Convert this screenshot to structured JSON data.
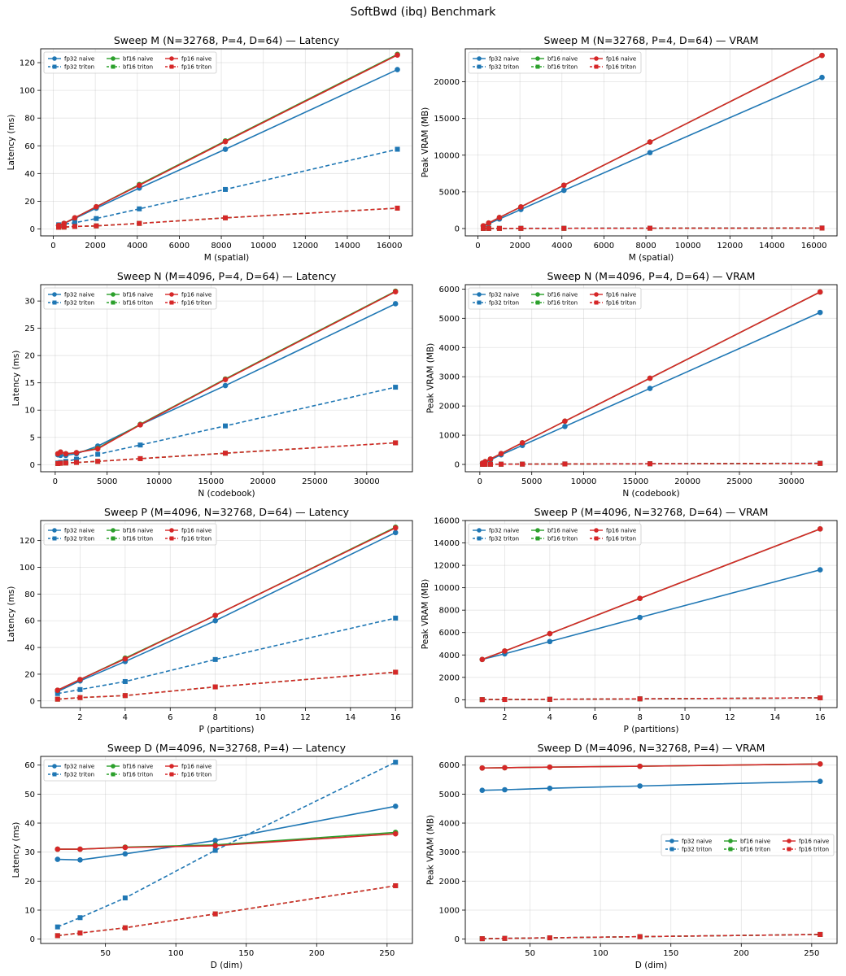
{
  "title": "SoftBwd (ibq) Benchmark",
  "colors": {
    "fp32": "#1f77b4",
    "bf16": "#2ca02c",
    "fp16": "#d62728"
  },
  "chart_data": [
    {
      "type": "line",
      "title": "Sweep M  (N=32768, P=4, D=64) — Latency",
      "xlabel": "M (spatial)",
      "ylabel": "Latency (ms)",
      "x": [
        256,
        512,
        1024,
        2048,
        4096,
        8192,
        16384
      ],
      "xlim": [
        -600,
        17100
      ],
      "ylim": [
        -5,
        130
      ],
      "xticks": [
        0,
        2000,
        4000,
        6000,
        8000,
        10000,
        12000,
        14000,
        16000
      ],
      "yticks": [
        0,
        20,
        40,
        60,
        80,
        100,
        120
      ],
      "legend_loc": "upper left",
      "series": [
        {
          "name": "fp32 naive",
          "dtype": "fp32",
          "kind": "naive",
          "values": [
            2.5,
            4,
            7.5,
            15,
            29.5,
            57.5,
            115
          ]
        },
        {
          "name": "fp32 triton",
          "dtype": "fp32",
          "kind": "triton",
          "values": [
            3,
            3.5,
            4.5,
            7.5,
            14.5,
            28.5,
            57.5
          ]
        },
        {
          "name": "bf16 naive",
          "dtype": "bf16",
          "kind": "naive",
          "values": [
            2.5,
            4,
            8,
            16,
            32,
            63.5,
            126
          ]
        },
        {
          "name": "bf16 triton",
          "dtype": "bf16",
          "kind": "triton",
          "values": [
            1.2,
            1.3,
            1.8,
            2.2,
            4,
            8,
            15
          ]
        },
        {
          "name": "fp16 naive",
          "dtype": "fp16",
          "kind": "naive",
          "values": [
            2.5,
            4,
            8,
            16,
            31.5,
            63,
            125.5
          ]
        },
        {
          "name": "fp16 triton",
          "dtype": "fp16",
          "kind": "triton",
          "values": [
            1.2,
            1.3,
            1.8,
            2.2,
            4,
            8,
            15
          ]
        }
      ]
    },
    {
      "type": "line",
      "title": "Sweep M  (N=32768, P=4, D=64) — VRAM",
      "xlabel": "M (spatial)",
      "ylabel": "Peak VRAM (MB)",
      "x": [
        256,
        512,
        1024,
        2048,
        4096,
        8192,
        16384
      ],
      "xlim": [
        -600,
        17100
      ],
      "ylim": [
        -1000,
        24500
      ],
      "xticks": [
        0,
        2000,
        4000,
        6000,
        8000,
        10000,
        12000,
        14000,
        16000
      ],
      "yticks": [
        0,
        5000,
        10000,
        15000,
        20000
      ],
      "legend_loc": "upper left",
      "series": [
        {
          "name": "fp32 naive",
          "dtype": "fp32",
          "kind": "naive",
          "values": [
            300,
            650,
            1300,
            2600,
            5200,
            10350,
            20600
          ]
        },
        {
          "name": "fp32 triton",
          "dtype": "fp32",
          "kind": "triton",
          "values": [
            15,
            15,
            20,
            25,
            35,
            50,
            70
          ]
        },
        {
          "name": "bf16 naive",
          "dtype": "bf16",
          "kind": "naive",
          "values": [
            370,
            750,
            1500,
            2950,
            5900,
            11800,
            23600
          ]
        },
        {
          "name": "bf16 triton",
          "dtype": "bf16",
          "kind": "triton",
          "values": [
            10,
            10,
            15,
            20,
            25,
            40,
            60
          ]
        },
        {
          "name": "fp16 naive",
          "dtype": "fp16",
          "kind": "naive",
          "values": [
            370,
            750,
            1500,
            2950,
            5900,
            11800,
            23600
          ]
        },
        {
          "name": "fp16 triton",
          "dtype": "fp16",
          "kind": "triton",
          "values": [
            10,
            10,
            15,
            20,
            25,
            40,
            60
          ]
        }
      ]
    },
    {
      "type": "line",
      "title": "Sweep N  (M=4096, P=4, D=64) — Latency",
      "xlabel": "N (codebook)",
      "ylabel": "Latency (ms)",
      "x": [
        256,
        512,
        1024,
        2048,
        4096,
        8192,
        16384,
        32768
      ],
      "xlim": [
        -1400,
        34400
      ],
      "ylim": [
        -1.3,
        33
      ],
      "xticks": [
        0,
        5000,
        10000,
        15000,
        20000,
        25000,
        30000
      ],
      "yticks": [
        0,
        5,
        10,
        15,
        20,
        25,
        30
      ],
      "legend_loc": "upper left",
      "series": [
        {
          "name": "fp32 naive",
          "dtype": "fp32",
          "kind": "naive",
          "values": [
            1.8,
            1.7,
            1.7,
            2.0,
            3.4,
            7.3,
            14.5,
            29.5
          ]
        },
        {
          "name": "fp32 triton",
          "dtype": "fp32",
          "kind": "triton",
          "values": [
            0.3,
            0.4,
            0.6,
            1.0,
            1.9,
            3.6,
            7.1,
            14.2
          ]
        },
        {
          "name": "bf16 naive",
          "dtype": "bf16",
          "kind": "naive",
          "values": [
            2.0,
            2.3,
            2.0,
            2.2,
            3.0,
            7.4,
            15.7,
            31.8
          ]
        },
        {
          "name": "bf16 triton",
          "dtype": "bf16",
          "kind": "triton",
          "values": [
            0.2,
            0.25,
            0.3,
            0.4,
            0.6,
            1.1,
            2.1,
            4.0
          ]
        },
        {
          "name": "fp16 naive",
          "dtype": "fp16",
          "kind": "naive",
          "values": [
            2.0,
            2.3,
            2.0,
            2.2,
            2.9,
            7.3,
            15.6,
            31.7
          ]
        },
        {
          "name": "fp16 triton",
          "dtype": "fp16",
          "kind": "triton",
          "values": [
            0.2,
            0.25,
            0.3,
            0.4,
            0.6,
            1.1,
            2.1,
            4.0
          ]
        }
      ]
    },
    {
      "type": "line",
      "title": "Sweep N  (M=4096, P=4, D=64) — VRAM",
      "xlabel": "N (codebook)",
      "ylabel": "Peak VRAM (MB)",
      "x": [
        256,
        512,
        1024,
        2048,
        4096,
        8192,
        16384,
        32768
      ],
      "xlim": [
        -1400,
        34400
      ],
      "ylim": [
        -250,
        6150
      ],
      "xticks": [
        0,
        5000,
        10000,
        15000,
        20000,
        25000,
        30000
      ],
      "yticks": [
        0,
        1000,
        2000,
        3000,
        4000,
        5000,
        6000
      ],
      "legend_loc": "upper left",
      "series": [
        {
          "name": "fp32 naive",
          "dtype": "fp32",
          "kind": "naive",
          "values": [
            40,
            80,
            160,
            330,
            650,
            1300,
            2600,
            5200
          ]
        },
        {
          "name": "fp32 triton",
          "dtype": "fp32",
          "kind": "triton",
          "values": [
            5,
            6,
            7,
            9,
            12,
            18,
            25,
            40
          ]
        },
        {
          "name": "bf16 naive",
          "dtype": "bf16",
          "kind": "naive",
          "values": [
            45,
            95,
            185,
            370,
            740,
            1480,
            2950,
            5900
          ]
        },
        {
          "name": "bf16 triton",
          "dtype": "bf16",
          "kind": "triton",
          "values": [
            4,
            5,
            6,
            8,
            10,
            15,
            22,
            35
          ]
        },
        {
          "name": "fp16 naive",
          "dtype": "fp16",
          "kind": "naive",
          "values": [
            45,
            95,
            185,
            370,
            740,
            1480,
            2950,
            5900
          ]
        },
        {
          "name": "fp16 triton",
          "dtype": "fp16",
          "kind": "triton",
          "values": [
            4,
            5,
            6,
            8,
            10,
            15,
            22,
            35
          ]
        }
      ]
    },
    {
      "type": "line",
      "title": "Sweep P  (M=4096, N=32768, D=64) — Latency",
      "xlabel": "P (partitions)",
      "ylabel": "Latency (ms)",
      "x": [
        1,
        2,
        4,
        8,
        16
      ],
      "xlim": [
        0.25,
        16.75
      ],
      "ylim": [
        -5,
        135
      ],
      "xticks": [
        2,
        4,
        6,
        8,
        10,
        12,
        14,
        16
      ],
      "yticks": [
        0,
        20,
        40,
        60,
        80,
        100,
        120
      ],
      "legend_loc": "upper left",
      "series": [
        {
          "name": "fp32 naive",
          "dtype": "fp32",
          "kind": "naive",
          "values": [
            7,
            15,
            29.5,
            60,
            126
          ]
        },
        {
          "name": "fp32 triton",
          "dtype": "fp32",
          "kind": "triton",
          "values": [
            5.5,
            8.5,
            14.5,
            31,
            62
          ]
        },
        {
          "name": "bf16 naive",
          "dtype": "bf16",
          "kind": "naive",
          "values": [
            8,
            16,
            32,
            64,
            130
          ]
        },
        {
          "name": "bf16 triton",
          "dtype": "bf16",
          "kind": "triton",
          "values": [
            1.3,
            2.5,
            4,
            10.5,
            21.5
          ]
        },
        {
          "name": "fp16 naive",
          "dtype": "fp16",
          "kind": "naive",
          "values": [
            8,
            16,
            31.5,
            64,
            129.5
          ]
        },
        {
          "name": "fp16 triton",
          "dtype": "fp16",
          "kind": "triton",
          "values": [
            1.3,
            2.5,
            4,
            10.5,
            21.5
          ]
        }
      ]
    },
    {
      "type": "line",
      "title": "Sweep P  (M=4096, N=32768, D=64) — VRAM",
      "xlabel": "P (partitions)",
      "ylabel": "Peak VRAM (MB)",
      "x": [
        1,
        2,
        4,
        8,
        16
      ],
      "xlim": [
        0.25,
        16.75
      ],
      "ylim": [
        -700,
        16000
      ],
      "xticks": [
        2,
        4,
        6,
        8,
        10,
        12,
        14,
        16
      ],
      "yticks": [
        0,
        2000,
        4000,
        6000,
        8000,
        10000,
        12000,
        14000,
        16000
      ],
      "legend_loc": "upper left",
      "series": [
        {
          "name": "fp32 naive",
          "dtype": "fp32",
          "kind": "naive",
          "values": [
            3600,
            4100,
            5200,
            7350,
            11600
          ]
        },
        {
          "name": "fp32 triton",
          "dtype": "fp32",
          "kind": "triton",
          "values": [
            15,
            25,
            40,
            80,
            170
          ]
        },
        {
          "name": "bf16 naive",
          "dtype": "bf16",
          "kind": "naive",
          "values": [
            3600,
            4350,
            5900,
            9050,
            15250
          ]
        },
        {
          "name": "bf16 triton",
          "dtype": "bf16",
          "kind": "triton",
          "values": [
            15,
            25,
            40,
            80,
            170
          ]
        },
        {
          "name": "fp16 naive",
          "dtype": "fp16",
          "kind": "naive",
          "values": [
            3600,
            4350,
            5900,
            9050,
            15250
          ]
        },
        {
          "name": "fp16 triton",
          "dtype": "fp16",
          "kind": "triton",
          "values": [
            15,
            25,
            40,
            80,
            170
          ]
        }
      ]
    },
    {
      "type": "line",
      "title": "Sweep D  (M=4096, N=32768, P=4) — Latency",
      "xlabel": "D (dim)",
      "ylabel": "Latency (ms)",
      "x": [
        16,
        32,
        64,
        128,
        256
      ],
      "xlim": [
        4,
        268
      ],
      "ylim": [
        -1.5,
        63
      ],
      "xticks": [
        50,
        100,
        150,
        200,
        250
      ],
      "yticks": [
        0,
        10,
        20,
        30,
        40,
        50,
        60
      ],
      "legend_loc": "upper left",
      "series": [
        {
          "name": "fp32 naive",
          "dtype": "fp32",
          "kind": "naive",
          "values": [
            27.5,
            27.3,
            29.4,
            34,
            45.8
          ]
        },
        {
          "name": "fp32 triton",
          "dtype": "fp32",
          "kind": "triton",
          "values": [
            4.2,
            7.4,
            14.2,
            30.6,
            61
          ]
        },
        {
          "name": "bf16 naive",
          "dtype": "bf16",
          "kind": "naive",
          "values": [
            31,
            31,
            31.7,
            32.5,
            36.8
          ]
        },
        {
          "name": "bf16 triton",
          "dtype": "bf16",
          "kind": "triton",
          "values": [
            1.2,
            2.1,
            3.9,
            8.7,
            18.4
          ]
        },
        {
          "name": "fp16 naive",
          "dtype": "fp16",
          "kind": "naive",
          "values": [
            31,
            31,
            31.6,
            32.2,
            36.3
          ]
        },
        {
          "name": "fp16 triton",
          "dtype": "fp16",
          "kind": "triton",
          "values": [
            1.2,
            2.1,
            3.9,
            8.7,
            18.4
          ]
        }
      ]
    },
    {
      "type": "line",
      "title": "Sweep D  (M=4096, N=32768, P=4) — VRAM",
      "xlabel": "D (dim)",
      "ylabel": "Peak VRAM (MB)",
      "x": [
        16,
        32,
        64,
        128,
        256
      ],
      "xlim": [
        4,
        268
      ],
      "ylim": [
        -150,
        6300
      ],
      "xticks": [
        50,
        100,
        150,
        200,
        250
      ],
      "yticks": [
        0,
        1000,
        2000,
        3000,
        4000,
        5000,
        6000
      ],
      "legend_loc": "center right",
      "series": [
        {
          "name": "fp32 naive",
          "dtype": "fp32",
          "kind": "naive",
          "values": [
            5130,
            5150,
            5200,
            5280,
            5440
          ]
        },
        {
          "name": "fp32 triton",
          "dtype": "fp32",
          "kind": "triton",
          "values": [
            15,
            25,
            45,
            85,
            160
          ]
        },
        {
          "name": "bf16 naive",
          "dtype": "bf16",
          "kind": "naive",
          "values": [
            5900,
            5910,
            5930,
            5960,
            6040
          ]
        },
        {
          "name": "bf16 triton",
          "dtype": "bf16",
          "kind": "triton",
          "values": [
            15,
            25,
            45,
            85,
            160
          ]
        },
        {
          "name": "fp16 naive",
          "dtype": "fp16",
          "kind": "naive",
          "values": [
            5900,
            5910,
            5930,
            5960,
            6040
          ]
        },
        {
          "name": "fp16 triton",
          "dtype": "fp16",
          "kind": "triton",
          "values": [
            15,
            25,
            45,
            85,
            160
          ]
        }
      ]
    }
  ]
}
